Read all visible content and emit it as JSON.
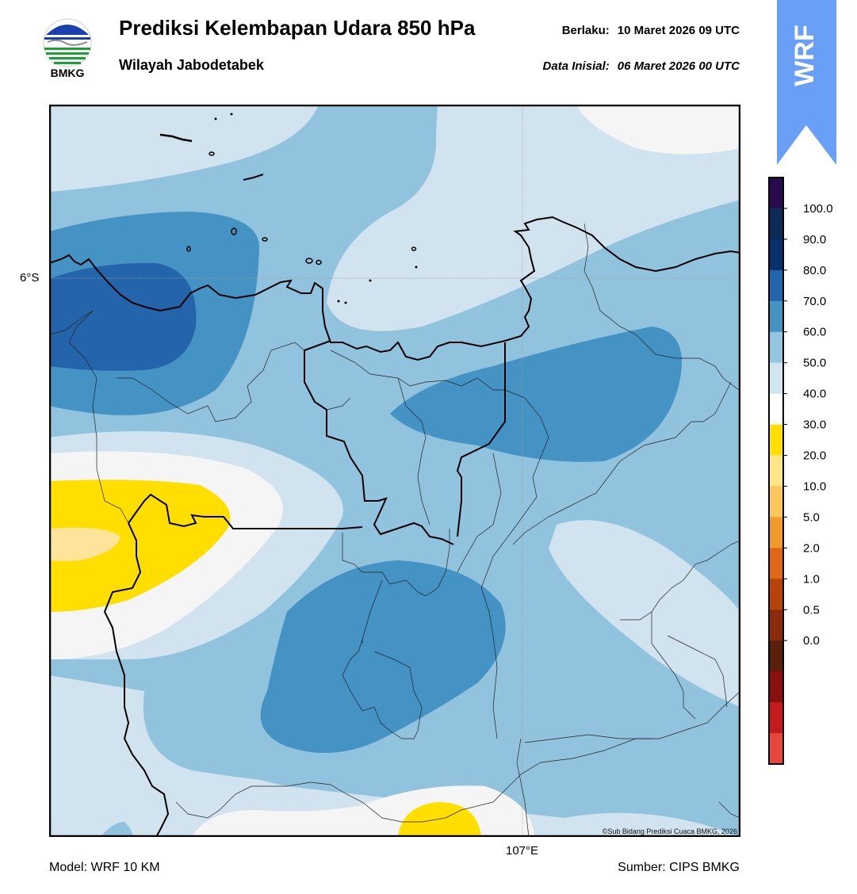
{
  "header": {
    "title": "Prediksi Kelembapan Udara 850 hPa",
    "subtitle": "Wilayah Jabodetabek",
    "valid_label": "Berlaku:",
    "valid_value": "10 Maret 2026 09 UTC",
    "init_label": "Data Inisial:",
    "init_value": "06 Maret 2026 00 UTC",
    "logo_text": "BMKG",
    "badge_text": "WRF"
  },
  "map": {
    "lat_label": "6°S",
    "lon_label": "107°E",
    "credit": "©Sub Bidang Prediksi Cuaca BMKG, 2026",
    "colors": {
      "c50_60": "#d1e3ef",
      "c60_70": "#92c3de",
      "c70_80": "#4493c4",
      "c80_90": "#2364ab",
      "c40_50": "#f5f5f5",
      "c30_40": "#ffde00",
      "c20_30": "#fde49a"
    }
  },
  "colorbar": {
    "ticks": [
      "100.0",
      "90.0",
      "80.0",
      "70.0",
      "60.0",
      "50.0",
      "40.0",
      "30.0",
      "20.0",
      "10.0",
      "5.0",
      "2.0",
      "1.0",
      "0.5",
      "0.0"
    ],
    "colors": [
      "#2a0a4e",
      "#0b2a55",
      "#08306b",
      "#2166ac",
      "#4393c3",
      "#92c5de",
      "#d1e5f0",
      "#ffffff",
      "#ffe000",
      "#fde68a",
      "#fdc65a",
      "#f39a2c",
      "#e0661a",
      "#b84308",
      "#8a2b0a",
      "#5c1f0c",
      "#8a0f10",
      "#c41a1c",
      "#e8463a"
    ]
  },
  "footer": {
    "model": "Model: WRF 10 KM",
    "source": "Sumber: CIPS BMKG"
  }
}
